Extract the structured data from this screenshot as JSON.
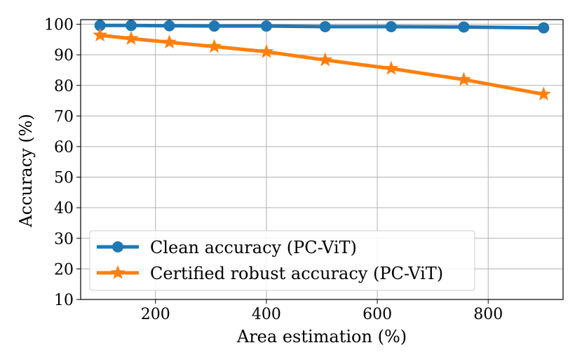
{
  "chart_data": {
    "type": "line",
    "xlabel": "Area estimation (%)",
    "ylabel": "Accuracy (%)",
    "xlim": [
      65,
      935
    ],
    "ylim": [
      10,
      101.5
    ],
    "xticks": [
      200,
      400,
      600,
      800
    ],
    "yticks": [
      10,
      20,
      30,
      40,
      50,
      60,
      70,
      80,
      90,
      100
    ],
    "grid": true,
    "legend_position": "lower-left",
    "series": [
      {
        "name": "Clean accuracy (PC-ViT)",
        "color": "#1f77b4",
        "marker": "circle",
        "x": [
          100,
          156,
          225,
          306,
          400,
          506,
          625,
          756,
          900
        ],
        "y": [
          99.6,
          99.6,
          99.5,
          99.4,
          99.4,
          99.2,
          99.2,
          99.1,
          98.8
        ]
      },
      {
        "name": "Certified robust accuracy (PC-ViT)",
        "color": "#ff7f0e",
        "marker": "star",
        "x": [
          100,
          156,
          225,
          306,
          400,
          506,
          625,
          756,
          900
        ],
        "y": [
          96.4,
          95.3,
          94.1,
          92.7,
          91.0,
          88.3,
          85.5,
          81.9,
          77.1
        ]
      }
    ]
  }
}
